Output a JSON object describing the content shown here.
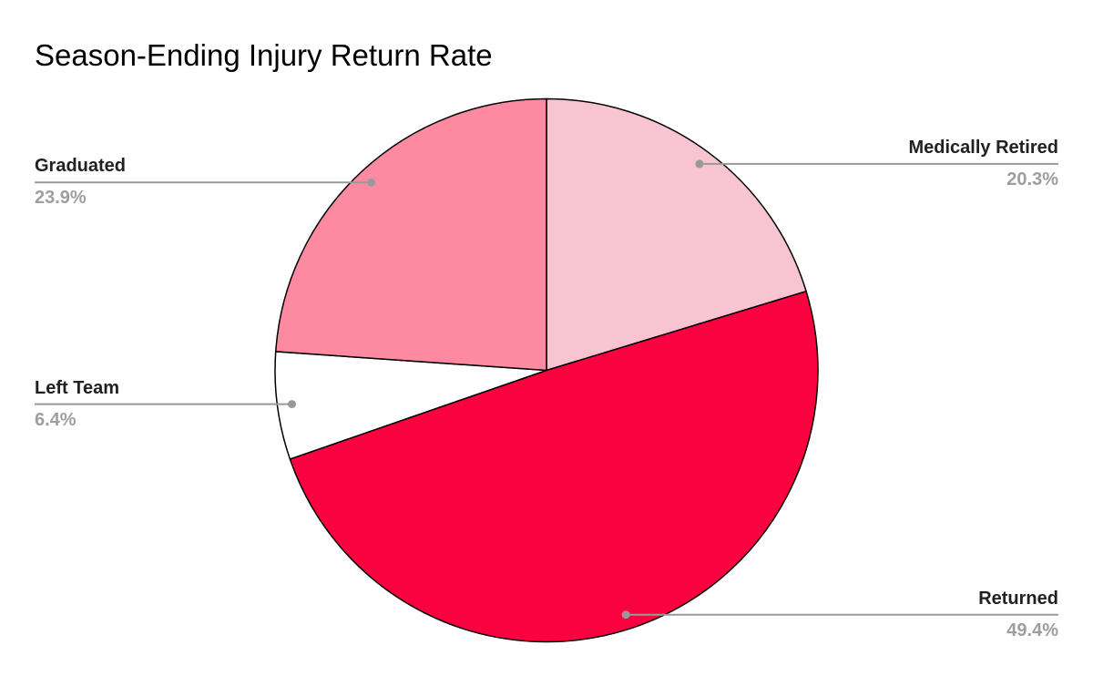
{
  "page": {
    "background": "#ffffff"
  },
  "chart_data": {
    "type": "pie",
    "title": "Season-Ending Injury Return Rate",
    "title_color": "#000000",
    "unit": "percent",
    "slices": [
      {
        "label": "Medically Retired",
        "value": 20.3,
        "display": "20.3%",
        "color": "#f9c4d1",
        "label_side": "right"
      },
      {
        "label": "Returned",
        "value": 49.4,
        "display": "49.4%",
        "color": "#fa0240",
        "label_side": "right"
      },
      {
        "label": "Left Team",
        "value": 6.4,
        "display": "6.4%",
        "color": "#ffffff",
        "label_side": "left"
      },
      {
        "label": "Graduated",
        "value": 23.9,
        "display": "23.9%",
        "color": "#fd8aa0",
        "label_side": "left"
      }
    ],
    "start_angle_deg": 0,
    "direction": "clockwise",
    "slice_stroke": "#000000",
    "leader_line_color": "#999999",
    "label_color": "#212121",
    "value_color": "#9e9e9e",
    "legend_position": "none",
    "labels_style": "outside-with-leader-lines"
  }
}
